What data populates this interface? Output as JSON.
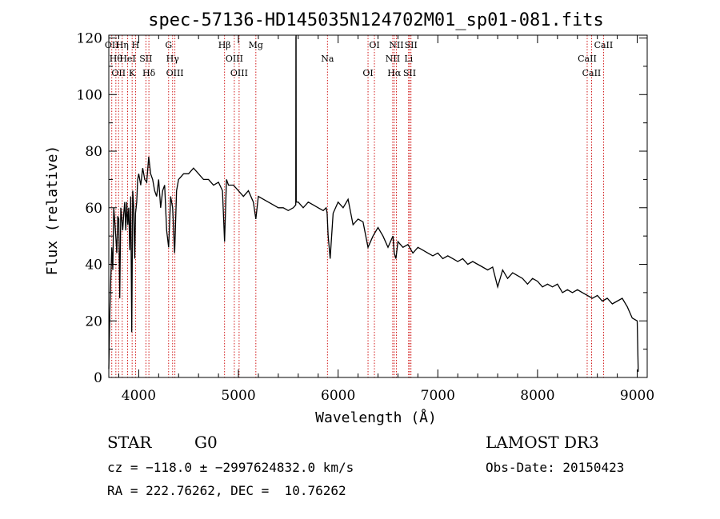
{
  "chart_data": {
    "type": "line",
    "title": "spec-57136-HD145035N124702M01_sp01-081.fits",
    "xlabel": "Wavelength (Å)",
    "ylabel": "Flux (relative)",
    "xlim": [
      3700,
      9100
    ],
    "ylim": [
      0,
      121
    ],
    "grid": false,
    "x_ticks": [
      4000,
      5000,
      6000,
      7000,
      8000,
      9000
    ],
    "x_tick_labels": [
      "4000",
      "5000",
      "6000",
      "7000",
      "8000",
      "9000"
    ],
    "y_ticks": [
      0,
      20,
      40,
      60,
      80,
      100,
      120
    ],
    "y_tick_labels": [
      "0",
      "20",
      "40",
      "60",
      "80",
      "100",
      "120"
    ],
    "series": [
      {
        "x": [
          3700,
          3710,
          3720,
          3730,
          3740,
          3750,
          3760,
          3770,
          3780,
          3790,
          3800,
          3810,
          3820,
          3830,
          3840,
          3850,
          3860,
          3870,
          3880,
          3890,
          3900,
          3910,
          3920,
          3930,
          3940,
          3950,
          3960,
          3968,
          3980,
          3990,
          4000,
          4020,
          4040,
          4060,
          4080,
          4100,
          4120,
          4140,
          4160,
          4180,
          4200,
          4220,
          4240,
          4260,
          4280,
          4300,
          4320,
          4340,
          4360,
          4380,
          4400,
          4450,
          4500,
          4550,
          4600,
          4650,
          4700,
          4750,
          4800,
          4840,
          4861,
          4880,
          4900,
          4950,
          5000,
          5050,
          5100,
          5150,
          5175,
          5200,
          5250,
          5300,
          5350,
          5400,
          5450,
          5500,
          5550,
          5575,
          5577,
          5578,
          5580,
          5600,
          5650,
          5700,
          5750,
          5800,
          5850,
          5880,
          5890,
          5900,
          5920,
          5950,
          6000,
          6050,
          6100,
          6150,
          6200,
          6250,
          6300,
          6350,
          6400,
          6450,
          6500,
          6550,
          6563,
          6580,
          6600,
          6650,
          6700,
          6750,
          6800,
          6850,
          6900,
          6950,
          7000,
          7050,
          7100,
          7150,
          7200,
          7250,
          7300,
          7350,
          7400,
          7450,
          7500,
          7550,
          7600,
          7650,
          7700,
          7750,
          7800,
          7850,
          7900,
          7950,
          8000,
          8050,
          8100,
          8150,
          8200,
          8250,
          8300,
          8350,
          8400,
          8450,
          8500,
          8550,
          8600,
          8650,
          8700,
          8750,
          8800,
          8850,
          8900,
          8950,
          9000,
          9010
        ],
        "y": [
          3,
          22,
          35,
          46,
          38,
          60,
          55,
          50,
          44,
          57,
          56,
          28,
          60,
          56,
          52,
          58,
          62,
          52,
          62,
          54,
          60,
          45,
          64,
          16,
          66,
          60,
          42,
          58,
          62,
          70,
          72,
          68,
          74,
          70,
          69,
          78,
          72,
          70,
          66,
          64,
          70,
          60,
          66,
          68,
          52,
          46,
          64,
          60,
          44,
          66,
          70,
          72,
          72,
          74,
          72,
          70,
          70,
          68,
          69,
          66,
          48,
          70,
          68,
          68,
          66,
          64,
          66,
          62,
          56,
          64,
          63,
          62,
          61,
          60,
          60,
          59,
          60,
          61,
          120,
          121,
          62,
          62,
          60,
          62,
          61,
          60,
          59,
          60,
          58,
          50,
          42,
          58,
          62,
          60,
          63,
          54,
          56,
          55,
          46,
          50,
          53,
          50,
          46,
          50,
          44,
          42,
          48,
          46,
          47,
          44,
          46,
          45,
          44,
          43,
          44,
          42,
          43,
          42,
          41,
          42,
          40,
          41,
          40,
          39,
          38,
          39,
          32,
          38,
          35,
          37,
          36,
          35,
          33,
          35,
          34,
          32,
          33,
          32,
          33,
          30,
          31,
          30,
          31,
          30,
          29,
          28,
          29,
          27,
          28,
          26,
          27,
          28,
          25,
          21,
          20,
          2
        ]
      }
    ],
    "lines": [
      {
        "x": 3730,
        "label": "OII"
      },
      {
        "x": 3771,
        "label": "Hθ"
      },
      {
        "x": 3798,
        "label": "OII"
      },
      {
        "x": 3835,
        "label": "Hη"
      },
      {
        "x": 3889,
        "label": "HeI"
      },
      {
        "x": 3934,
        "label": "K"
      },
      {
        "x": 3968,
        "label": "H"
      },
      {
        "x": 4072,
        "label": "SII"
      },
      {
        "x": 4102,
        "label": "Hδ"
      },
      {
        "x": 4300,
        "label": "G"
      },
      {
        "x": 4340,
        "label": "Hγ"
      },
      {
        "x": 4363,
        "label": "OIII"
      },
      {
        "x": 4861,
        "label": "Hβ"
      },
      {
        "x": 4959,
        "label": "OIII"
      },
      {
        "x": 5007,
        "label": "OIII"
      },
      {
        "x": 5175,
        "label": "Mg"
      },
      {
        "x": 5893,
        "label": "Na"
      },
      {
        "x": 6300,
        "label": "OI"
      },
      {
        "x": 6364,
        "label": "OI"
      },
      {
        "x": 6548,
        "label": "NII"
      },
      {
        "x": 6563,
        "label": "Hα"
      },
      {
        "x": 6584,
        "label": "NII"
      },
      {
        "x": 6707,
        "label": "Li"
      },
      {
        "x": 6717,
        "label": "SII"
      },
      {
        "x": 6731,
        "label": "SII"
      },
      {
        "x": 8498,
        "label": "CaII"
      },
      {
        "x": 8542,
        "label": "CaII"
      },
      {
        "x": 8662,
        "label": "CaII"
      }
    ]
  },
  "info": {
    "object_class": "STAR",
    "subclass": "G0",
    "survey": "LAMOST DR3",
    "cz": "cz = −118.0 ± −2997624832.0 km/s",
    "obs_date": "Obs-Date: 20150423",
    "coords": "RA = 222.76262, DEC =  10.76262"
  },
  "colors": {
    "spectrum": "#000000",
    "line_markers": "#cc0000",
    "axes": "#000000",
    "background": "#ffffff"
  }
}
